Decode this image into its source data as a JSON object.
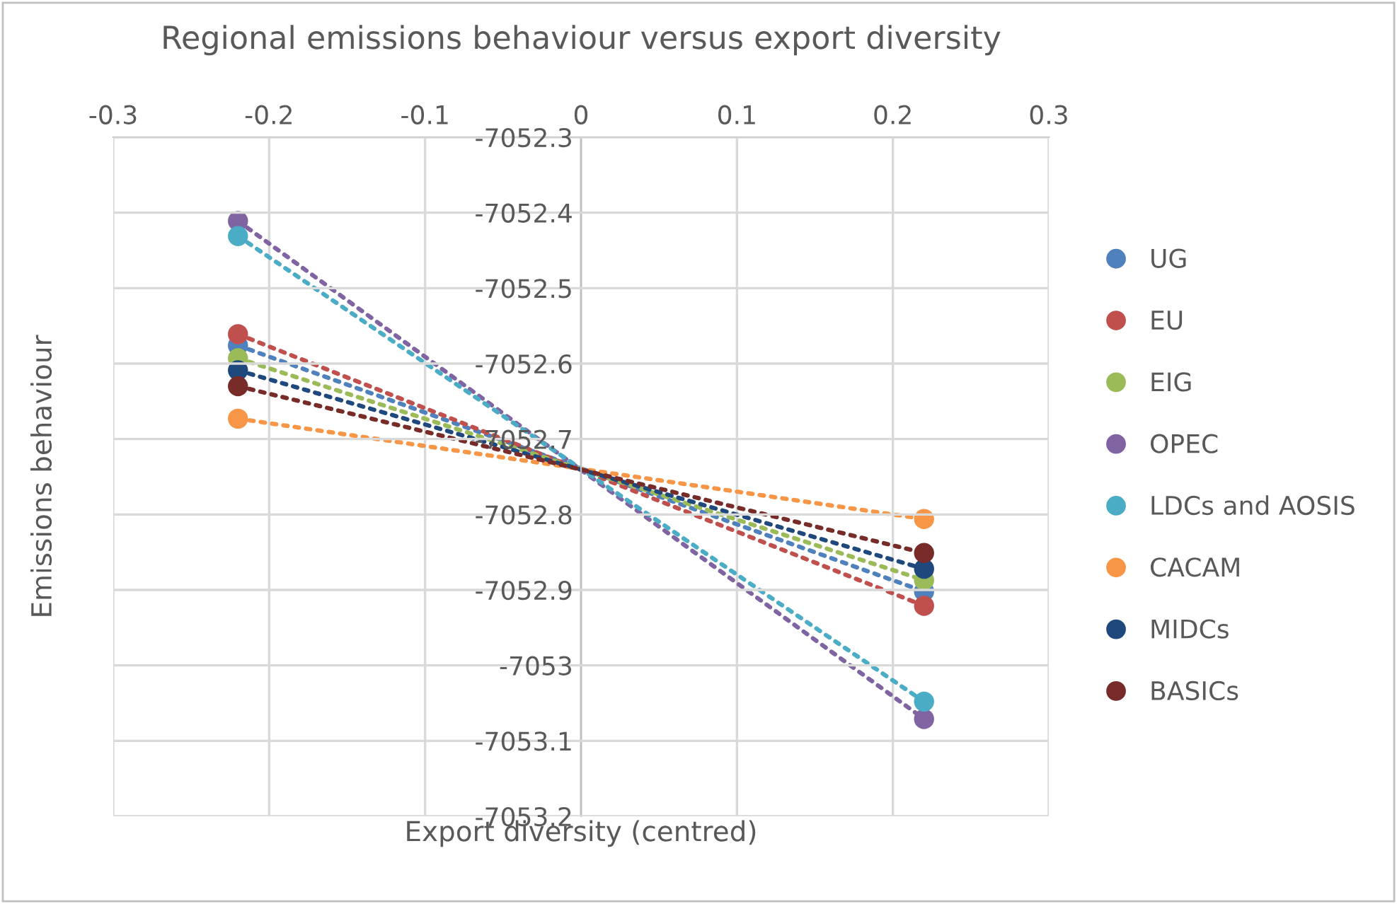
{
  "chart_data": {
    "type": "scatter",
    "title": "Regional emissions behaviour versus export diversity",
    "xlabel": "Export diversity (centred)",
    "ylabel": "Emissions behaviour",
    "x": [
      -0.22,
      0.22
    ],
    "series": [
      {
        "name": "UG",
        "marker": "circle",
        "color": "#4f81bd",
        "values": [
          -7052.576,
          -7052.902
        ]
      },
      {
        "name": "EU",
        "marker": "circle",
        "color": "#c0504d",
        "values": [
          -7052.561,
          -7052.921
        ]
      },
      {
        "name": "EIG",
        "marker": "circle",
        "color": "#9bbb59",
        "values": [
          -7052.593,
          -7052.887
        ]
      },
      {
        "name": "OPEC",
        "marker": "circle",
        "color": "#8064a2",
        "values": [
          -7052.411,
          -7053.071
        ]
      },
      {
        "name": "LDCs and AOSIS",
        "marker": "circle",
        "color": "#4bacc6",
        "values": [
          -7052.431,
          -7053.048
        ]
      },
      {
        "name": "CACAM",
        "marker": "circle",
        "color": "#f79646",
        "values": [
          -7052.673,
          -7052.806
        ]
      },
      {
        "name": "MIDCs",
        "marker": "circle",
        "color": "#1f497d",
        "values": [
          -7052.609,
          -7052.872
        ]
      },
      {
        "name": "BASICs",
        "marker": "circle",
        "color": "#772c2a",
        "values": [
          -7052.63,
          -7052.851
        ]
      },
      {
        "type": "line",
        "line_style": "dotted",
        "color": "#4f81bd",
        "values": [
          -7052.576,
          -7052.902
        ]
      },
      {
        "type": "line",
        "line_style": "dotted",
        "color": "#c0504d",
        "values": [
          -7052.561,
          -7052.921
        ]
      },
      {
        "type": "line",
        "line_style": "dotted",
        "color": "#9bbb59",
        "values": [
          -7052.593,
          -7052.887
        ]
      },
      {
        "type": "line",
        "line_style": "dotted",
        "color": "#8064a2",
        "values": [
          -7052.411,
          -7053.071
        ]
      },
      {
        "type": "line",
        "line_style": "dotted",
        "color": "#4bacc6",
        "values": [
          -7052.431,
          -7053.048
        ]
      },
      {
        "type": "line",
        "line_style": "dotted",
        "color": "#f79646",
        "values": [
          -7052.673,
          -7052.806
        ]
      },
      {
        "type": "line",
        "line_style": "dotted",
        "color": "#1f497d",
        "values": [
          -7052.609,
          -7052.872
        ]
      },
      {
        "type": "line",
        "line_style": "dotted",
        "color": "#772c2a",
        "values": [
          -7052.63,
          -7052.851
        ]
      }
    ],
    "xlim": [
      -0.3,
      0.3
    ],
    "xticks": [
      -0.3,
      -0.2,
      -0.1,
      0,
      0.1,
      0.2,
      0.3
    ],
    "ylim": [
      -7053.2,
      -7052.3
    ],
    "yticks": [
      -7053.2,
      -7053.1,
      -7053,
      -7052.9,
      -7052.8,
      -7052.7,
      -7052.6,
      -7052.5,
      -7052.4,
      -7052.3
    ],
    "grid": true,
    "legend": "right"
  }
}
